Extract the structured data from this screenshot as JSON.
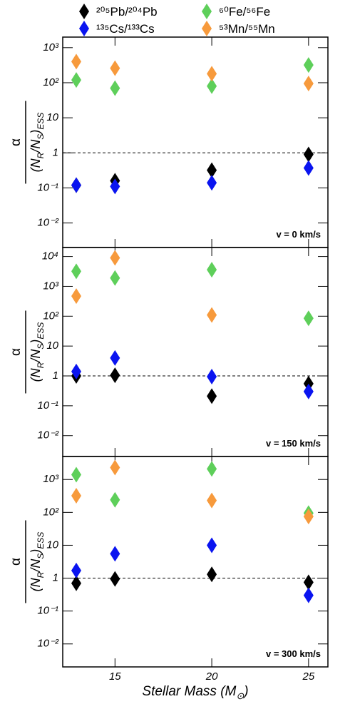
{
  "chart_data": [
    {
      "type": "scatter",
      "log_y": true,
      "annotation": "v = 0 km/s",
      "hline": 1,
      "x": [
        13,
        15,
        20,
        25
      ],
      "xlim": [
        12.3,
        26
      ],
      "xticks": [
        15,
        20,
        25
      ],
      "ylim": [
        0.002,
        2000
      ],
      "yticks": [
        {
          "value": 0.01,
          "label": "10⁻²"
        },
        {
          "value": 0.1,
          "label": "10⁻¹"
        },
        1,
        10,
        {
          "value": 100,
          "label": "10²"
        },
        {
          "value": 1000,
          "label": "10³"
        }
      ],
      "series": [
        {
          "name": "²⁰⁵Pb/²⁰⁴Pb",
          "color": "#000000",
          "values": [
            0.12,
            0.16,
            0.32,
            0.9
          ]
        },
        {
          "name": "¹³⁵Cs/¹³³Cs",
          "color": "#0a14f0",
          "values": [
            0.12,
            0.11,
            0.14,
            0.37
          ]
        },
        {
          "name": "⁶⁰Fe/⁵⁶Fe",
          "color": "#5ecf5a",
          "values": [
            120,
            70,
            80,
            320
          ]
        },
        {
          "name": "⁵³Mn/⁵⁵Mn",
          "color": "#f79a3c",
          "values": [
            400,
            260,
            180,
            95
          ]
        }
      ]
    },
    {
      "type": "scatter",
      "log_y": true,
      "annotation": "v = 150 km/s",
      "hline": 1,
      "x": [
        13,
        15,
        20,
        25
      ],
      "xlim": [
        12.3,
        26
      ],
      "xticks": [
        15,
        20,
        25
      ],
      "ylim": [
        0.002,
        20000
      ],
      "yticks": [
        {
          "value": 0.01,
          "label": "10⁻²"
        },
        {
          "value": 0.1,
          "label": "10⁻¹"
        },
        1,
        10,
        {
          "value": 100,
          "label": "10²"
        },
        {
          "value": 1000,
          "label": "10³"
        },
        {
          "value": 10000,
          "label": "10⁴"
        }
      ],
      "series": [
        {
          "values": [
            1.0,
            1.05,
            0.21,
            0.55
          ]
        },
        {
          "values": [
            1.4,
            4.0,
            0.95,
            0.3
          ]
        },
        {
          "values": [
            3200,
            1900,
            3600,
            85
          ]
        },
        {
          "values": [
            470,
            9000,
            110,
            null
          ]
        }
      ]
    },
    {
      "type": "scatter",
      "log_y": true,
      "annotation": "v = 300 km/s",
      "hline": 1,
      "x": [
        13,
        15,
        20,
        25
      ],
      "xlim": [
        12.3,
        26
      ],
      "xticks": [
        15,
        20,
        25
      ],
      "ylim": [
        0.002,
        5000
      ],
      "yticks": [
        {
          "value": 0.01,
          "label": "10⁻²"
        },
        {
          "value": 0.1,
          "label": "10⁻¹"
        },
        1,
        10,
        {
          "value": 100,
          "label": "10²"
        },
        {
          "value": 1000,
          "label": "10³"
        }
      ],
      "series": [
        {
          "values": [
            0.7,
            0.95,
            1.3,
            0.75
          ]
        },
        {
          "values": [
            1.7,
            5.5,
            10,
            0.3
          ]
        },
        {
          "values": [
            1400,
            240,
            2100,
            95
          ]
        },
        {
          "values": [
            320,
            2300,
            230,
            75
          ]
        }
      ]
    }
  ],
  "ylabel_numerator": "α",
  "ylabel_denominator": [
    "(N",
    "R",
    "/N",
    "S",
    ")",
    "ESS"
  ],
  "xlabel": [
    "Stellar Mass (M",
    "⊙",
    ")"
  ]
}
